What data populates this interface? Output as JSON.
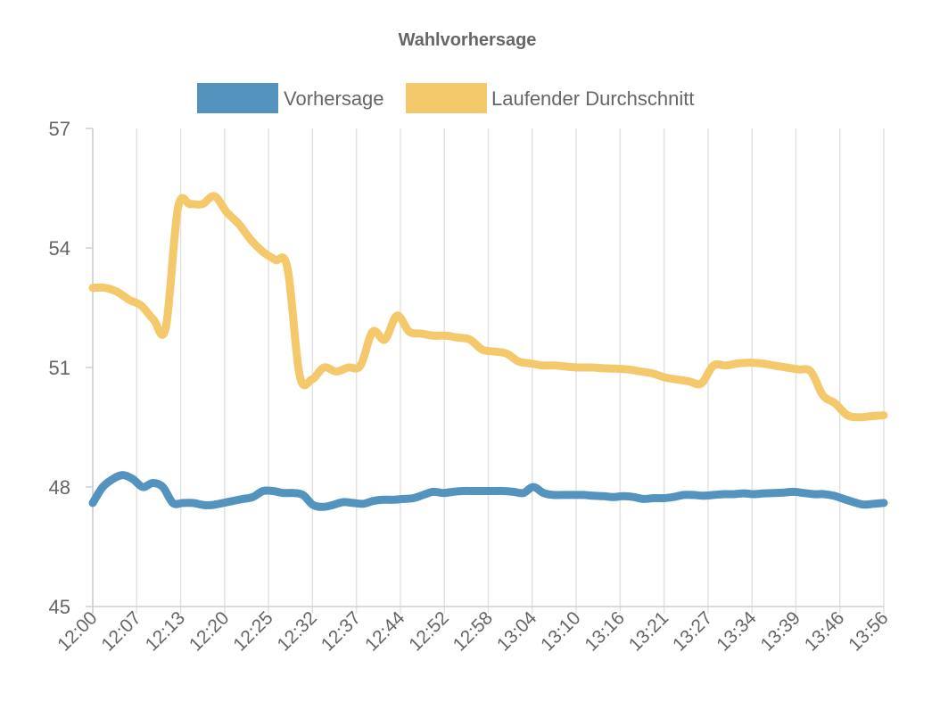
{
  "chart_data": {
    "type": "line",
    "title": "Wahlvorhersage",
    "xlabel": "",
    "ylabel": "",
    "ylim": [
      45,
      57
    ],
    "yticks": [
      45,
      48,
      51,
      54,
      57
    ],
    "x_tick_labels": [
      "12:00",
      "12:07",
      "12:13",
      "12:20",
      "12:25",
      "12:32",
      "12:37",
      "12:44",
      "12:52",
      "12:58",
      "13:04",
      "13:10",
      "13:16",
      "13:21",
      "13:27",
      "13:34",
      "13:39",
      "13:46",
      "13:56"
    ],
    "grid": true,
    "legend_position": "top",
    "series": [
      {
        "name": "Vorhersage",
        "color": "#5393bd",
        "values": [
          47.6,
          48.0,
          48.2,
          48.3,
          48.2,
          48.0,
          48.1,
          48.0,
          47.6,
          47.6,
          47.6,
          47.55,
          47.55,
          47.6,
          47.65,
          47.7,
          47.75,
          47.9,
          47.9,
          47.85,
          47.85,
          47.8,
          47.55,
          47.5,
          47.55,
          47.62,
          47.6,
          47.58,
          47.65,
          47.68,
          47.68,
          47.7,
          47.72,
          47.8,
          47.88,
          47.85,
          47.88,
          47.9,
          47.9,
          47.9,
          47.9,
          47.9,
          47.88,
          47.85,
          48.0,
          47.85,
          47.8,
          47.8,
          47.8,
          47.8,
          47.78,
          47.77,
          47.75,
          47.77,
          47.75,
          47.7,
          47.72,
          47.72,
          47.75,
          47.8,
          47.8,
          47.78,
          47.8,
          47.82,
          47.82,
          47.84,
          47.82,
          47.84,
          47.85,
          47.86,
          47.88,
          47.85,
          47.82,
          47.82,
          47.78,
          47.7,
          47.62,
          47.56,
          47.58,
          47.6
        ]
      },
      {
        "name": "Laufender Durchschnitt",
        "color": "#f3c96b",
        "values": [
          53.0,
          53.0,
          52.9,
          52.7,
          52.55,
          52.2,
          52.0,
          55.0,
          55.1,
          55.1,
          55.3,
          54.9,
          54.6,
          54.2,
          53.9,
          53.7,
          53.5,
          50.8,
          50.7,
          51.0,
          50.9,
          51.0,
          51.05,
          51.9,
          51.7,
          52.3,
          51.9,
          51.85,
          51.8,
          51.8,
          51.75,
          51.7,
          51.45,
          51.4,
          51.35,
          51.15,
          51.1,
          51.05,
          51.05,
          51.02,
          51.0,
          51.0,
          50.98,
          50.97,
          50.95,
          50.9,
          50.85,
          50.75,
          50.7,
          50.65,
          50.6,
          51.05,
          51.05,
          51.1,
          51.12,
          51.1,
          51.05,
          51.0,
          50.95,
          50.9,
          50.3,
          50.1,
          49.8,
          49.75,
          49.78,
          49.8
        ]
      }
    ]
  }
}
